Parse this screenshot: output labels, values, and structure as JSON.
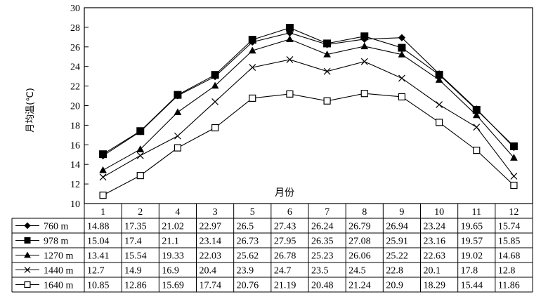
{
  "chart_data": {
    "type": "line",
    "title": "",
    "xlabel": "月份",
    "ylabel": "月均温(℃)",
    "ylim": [
      10,
      30
    ],
    "ytick_step": 2,
    "categories": [
      "1",
      "2",
      "4",
      "3",
      "5",
      "6",
      "7",
      "8",
      "9",
      "10",
      "11",
      "12"
    ],
    "series": [
      {
        "name": "760 m",
        "marker": "diamond-filled",
        "values": [
          14.88,
          17.35,
          21.02,
          22.97,
          26.5,
          27.43,
          26.24,
          26.79,
          26.94,
          23.24,
          19.65,
          15.74
        ]
      },
      {
        "name": "978 m",
        "marker": "square-filled",
        "values": [
          15.04,
          17.4,
          21.1,
          23.14,
          26.73,
          27.95,
          26.35,
          27.08,
          25.91,
          23.16,
          19.57,
          15.85
        ]
      },
      {
        "name": "1270 m",
        "marker": "triangle-filled",
        "values": [
          13.41,
          15.54,
          19.33,
          22.03,
          25.62,
          26.78,
          25.23,
          26.06,
          25.22,
          22.63,
          19.02,
          14.68
        ]
      },
      {
        "name": "1440 m",
        "marker": "x",
        "values": [
          12.7,
          14.9,
          16.9,
          20.4,
          23.9,
          24.7,
          23.5,
          24.5,
          22.8,
          20.1,
          17.8,
          12.8
        ]
      },
      {
        "name": "1640 m",
        "marker": "square-open",
        "values": [
          10.85,
          12.86,
          15.69,
          17.74,
          20.76,
          21.19,
          20.48,
          21.24,
          20.9,
          18.29,
          15.44,
          11.86
        ]
      }
    ],
    "table_labels": [
      [
        "14.88",
        "17.35",
        "21.02",
        "22.97",
        "26.5",
        "27.43",
        "26.24",
        "26.79",
        "26.94",
        "23.24",
        "19.65",
        "15.74"
      ],
      [
        "15.04",
        "17.4",
        "21.1",
        "23.14",
        "26.73",
        "27.95",
        "26.35",
        "27.08",
        "25.91",
        "23.16",
        "19.57",
        "15.85"
      ],
      [
        "13.41",
        "15.54",
        "19.33",
        "22.03",
        "25.62",
        "26.78",
        "25.23",
        "26.06",
        "25.22",
        "22.63",
        "19.02",
        "14.68"
      ],
      [
        "12.7",
        "14.9",
        "16.9",
        "20.4",
        "23.9",
        "24.7",
        "23.5",
        "24.5",
        "22.8",
        "20.1",
        "17.8",
        "12.8"
      ],
      [
        "10.85",
        "12.86",
        "15.69",
        "17.74",
        "20.76",
        "21.19",
        "20.48",
        "21.24",
        "20.9",
        "18.29",
        "15.44",
        "11.86"
      ]
    ],
    "line_color": "#000000",
    "grid": false
  }
}
